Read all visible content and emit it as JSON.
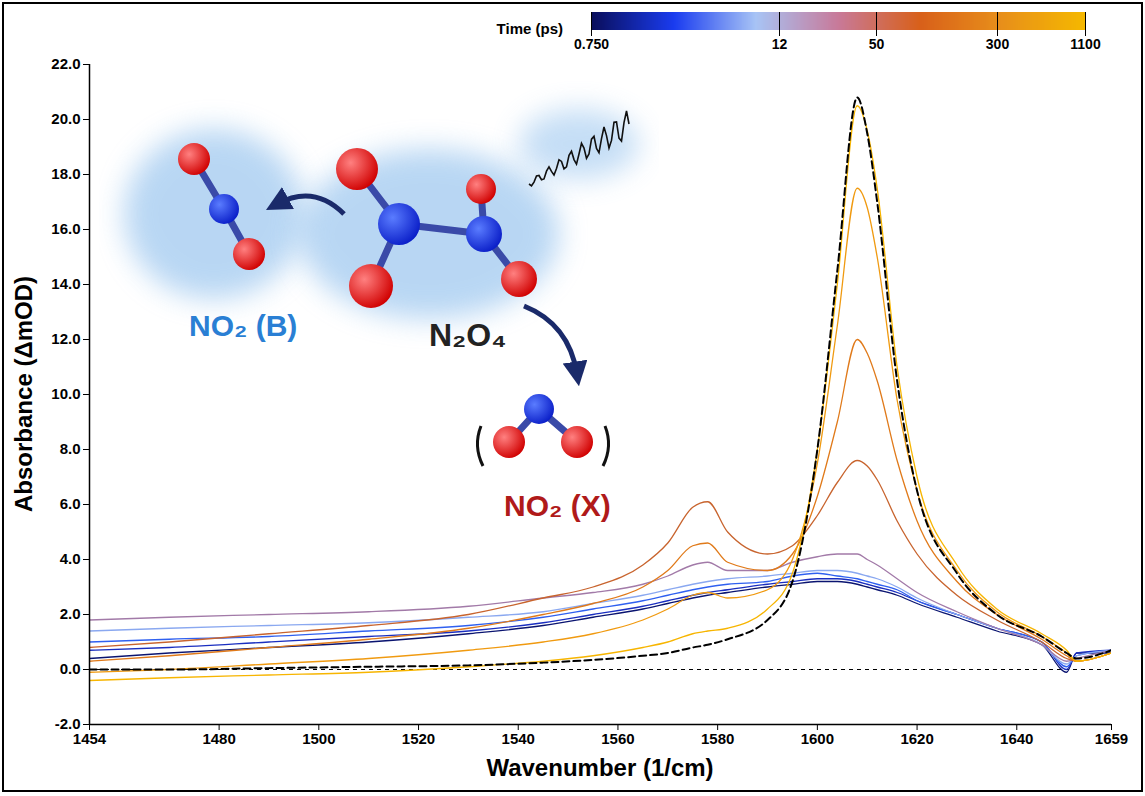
{
  "chart_data": {
    "type": "line",
    "x_label": "Wavenumber (1/cm)",
    "y_label": "Absorbance (ΔmOD)",
    "x": [
      1454,
      1470,
      1490,
      1510,
      1530,
      1545,
      1555,
      1565,
      1570,
      1575,
      1578,
      1582,
      1590,
      1595,
      1600,
      1604,
      1608,
      1610,
      1612,
      1616,
      1620,
      1628,
      1636,
      1645,
      1650,
      1652,
      1659
    ],
    "series": [
      {
        "color": "#0a1470",
        "values": [
          0.4,
          0.6,
          0.8,
          1.0,
          1.3,
          1.6,
          1.9,
          2.2,
          2.4,
          2.6,
          2.7,
          2.8,
          3.0,
          3.1,
          3.2,
          3.2,
          3.1,
          3.0,
          2.9,
          2.7,
          2.4,
          1.9,
          1.4,
          0.9,
          -0.1,
          0.6,
          0.6
        ]
      },
      {
        "color": "#1a2ec0",
        "values": [
          0.7,
          0.8,
          1.0,
          1.2,
          1.4,
          1.7,
          2.0,
          2.3,
          2.5,
          2.7,
          2.8,
          2.9,
          3.1,
          3.2,
          3.3,
          3.3,
          3.2,
          3.1,
          3.0,
          2.8,
          2.5,
          2.0,
          1.5,
          1.0,
          0.0,
          0.6,
          0.7
        ]
      },
      {
        "color": "#2f60f0",
        "values": [
          1.0,
          1.1,
          1.2,
          1.4,
          1.6,
          1.9,
          2.2,
          2.5,
          2.7,
          2.9,
          3.0,
          3.1,
          3.2,
          3.4,
          3.5,
          3.4,
          3.3,
          3.2,
          3.1,
          2.9,
          2.5,
          2.0,
          1.5,
          1.0,
          0.1,
          0.5,
          0.7
        ]
      },
      {
        "color": "#8aa8f0",
        "values": [
          1.4,
          1.5,
          1.6,
          1.7,
          1.9,
          2.1,
          2.4,
          2.7,
          2.9,
          3.1,
          3.2,
          3.3,
          3.4,
          3.5,
          3.6,
          3.6,
          3.5,
          3.4,
          3.3,
          3.0,
          2.6,
          2.0,
          1.5,
          0.9,
          0.2,
          0.5,
          0.7
        ]
      },
      {
        "color": "#a27aa8",
        "values": [
          1.8,
          1.9,
          2.0,
          2.1,
          2.3,
          2.6,
          2.8,
          3.1,
          3.4,
          3.8,
          3.9,
          3.6,
          3.6,
          3.9,
          4.1,
          4.2,
          4.2,
          4.0,
          3.8,
          3.3,
          2.8,
          2.1,
          1.5,
          0.9,
          0.3,
          0.4,
          0.7
        ]
      },
      {
        "color": "#c8642e",
        "values": [
          0.8,
          1.0,
          1.3,
          1.6,
          2.0,
          2.6,
          3.0,
          3.8,
          4.6,
          5.9,
          6.1,
          5.0,
          4.2,
          4.5,
          5.6,
          6.8,
          7.6,
          7.4,
          6.9,
          5.4,
          4.2,
          2.7,
          1.8,
          1.0,
          0.4,
          0.3,
          0.6
        ]
      },
      {
        "color": "#e07a1a",
        "values": [
          0.3,
          0.5,
          0.8,
          1.1,
          1.5,
          2.0,
          2.4,
          3.0,
          3.6,
          4.5,
          4.6,
          3.9,
          3.6,
          4.2,
          6.3,
          9.0,
          12.0,
          11.5,
          10.5,
          7.6,
          5.4,
          3.2,
          2.0,
          1.1,
          0.5,
          0.3,
          0.6
        ]
      },
      {
        "color": "#f09a10",
        "values": [
          -0.1,
          0.0,
          0.2,
          0.4,
          0.7,
          1.0,
          1.3,
          1.8,
          2.2,
          2.7,
          2.8,
          2.6,
          2.9,
          4.0,
          7.5,
          12.5,
          17.5,
          16.8,
          15.0,
          9.8,
          6.5,
          3.6,
          2.1,
          1.2,
          0.6,
          0.3,
          0.6
        ]
      },
      {
        "color": "#f7b500",
        "values": [
          -0.4,
          -0.3,
          -0.2,
          -0.1,
          0.1,
          0.3,
          0.5,
          0.8,
          1.0,
          1.3,
          1.4,
          1.5,
          2.2,
          3.5,
          8.0,
          14.0,
          20.5,
          19.6,
          17.5,
          11.0,
          7.0,
          3.8,
          2.2,
          1.3,
          0.7,
          0.3,
          0.6
        ]
      },
      {
        "color": "#000000",
        "line_style": "dashed",
        "values": [
          0.0,
          0.0,
          0.05,
          0.1,
          0.15,
          0.25,
          0.35,
          0.5,
          0.6,
          0.8,
          0.9,
          1.1,
          1.8,
          3.2,
          8.0,
          14.5,
          20.8,
          19.5,
          17.0,
          10.5,
          6.5,
          3.5,
          2.0,
          1.2,
          0.6,
          0.4,
          0.7
        ]
      }
    ],
    "xlim": [
      1454,
      1659
    ],
    "ylim": [
      -2,
      22
    ],
    "xticks": [
      1454,
      1480,
      1500,
      1520,
      1540,
      1560,
      1580,
      1600,
      1620,
      1640,
      1659
    ],
    "yticks": [
      {
        "value": -2,
        "label": "-2.0"
      },
      {
        "value": 0,
        "label": "0.0"
      },
      {
        "value": 2,
        "label": "2.0"
      },
      {
        "value": 4,
        "label": "4.0"
      },
      {
        "value": 6,
        "label": "6.0"
      },
      {
        "value": 8,
        "label": "8.0"
      },
      {
        "value": 10,
        "label": "10.0"
      },
      {
        "value": 12,
        "label": "12.0"
      },
      {
        "value": 14,
        "label": "14.0"
      },
      {
        "value": 16,
        "label": "16.0"
      },
      {
        "value": 18,
        "label": "18.0"
      },
      {
        "value": 20,
        "label": "20.0"
      },
      {
        "value": 22,
        "label": "22.0"
      }
    ],
    "reference_line": {
      "y": 0,
      "line_style": "dashed"
    },
    "colorbar": {
      "title": "Time (ps)",
      "colors": [
        "#0a0f5c",
        "#1a3cf0",
        "#a8c4f5",
        "#c87a9a",
        "#d8601a",
        "#e8901a",
        "#f5b800"
      ],
      "ticks": [
        {
          "value": 0.75,
          "label": "0.750"
        },
        12,
        50,
        300,
        1100
      ]
    },
    "annotations": [
      {
        "text": "NO₂ (B)",
        "color": "#2a7fd4"
      },
      {
        "text": "N₂O₄",
        "color": "#222222"
      },
      {
        "text": "NO₂ (X)",
        "color": "#b01a1a"
      }
    ]
  }
}
